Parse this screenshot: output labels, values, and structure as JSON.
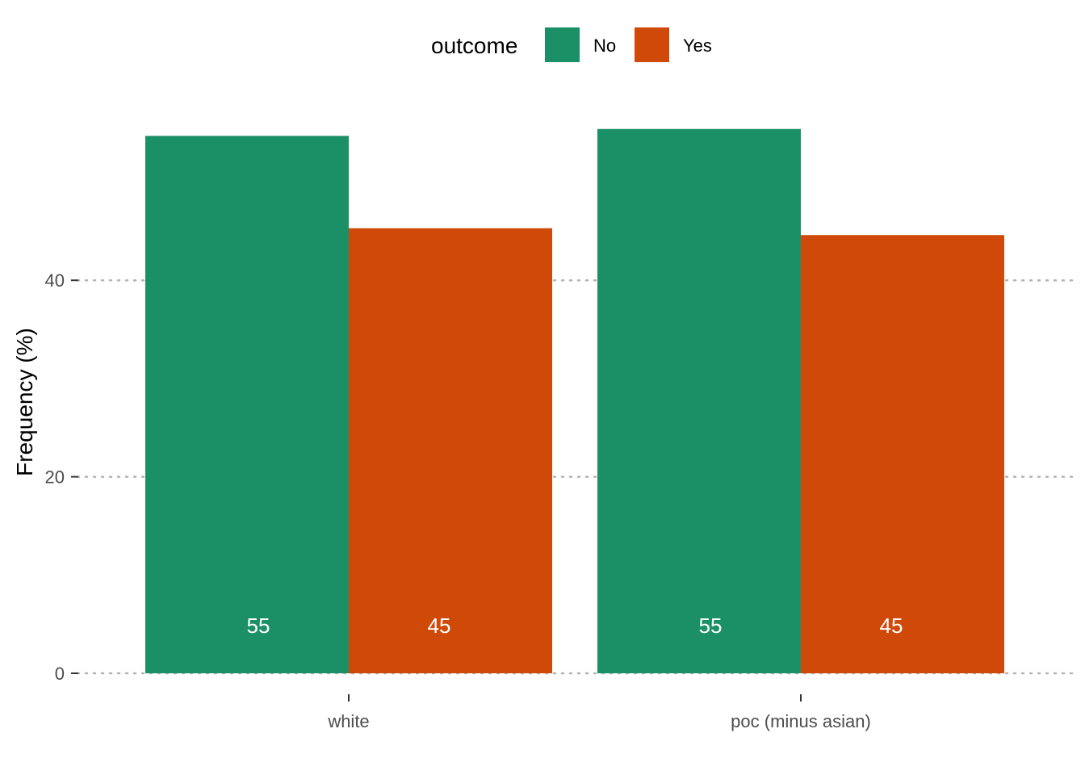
{
  "chart_data": {
    "type": "bar",
    "title": "",
    "xlabel": "",
    "ylabel": "Frequency (%)",
    "ylim": [
      0,
      55.4
    ],
    "yticks": [
      0,
      20,
      40
    ],
    "grid": "horizontal-dotted",
    "legend": {
      "title": "outcome",
      "position": "top",
      "entries": [
        {
          "name": "No",
          "color": "#1b9066"
        },
        {
          "name": "Yes",
          "color": "#cf4a09"
        }
      ]
    },
    "categories": [
      "white",
      "poc (minus asian)"
    ],
    "series": [
      {
        "name": "No",
        "color": "#1b9066",
        "values": [
          54.7,
          55.4
        ],
        "labels": [
          "55",
          "55"
        ]
      },
      {
        "name": "Yes",
        "color": "#cf4a09",
        "values": [
          45.3,
          44.6
        ],
        "labels": [
          "45",
          "45"
        ]
      }
    ]
  }
}
